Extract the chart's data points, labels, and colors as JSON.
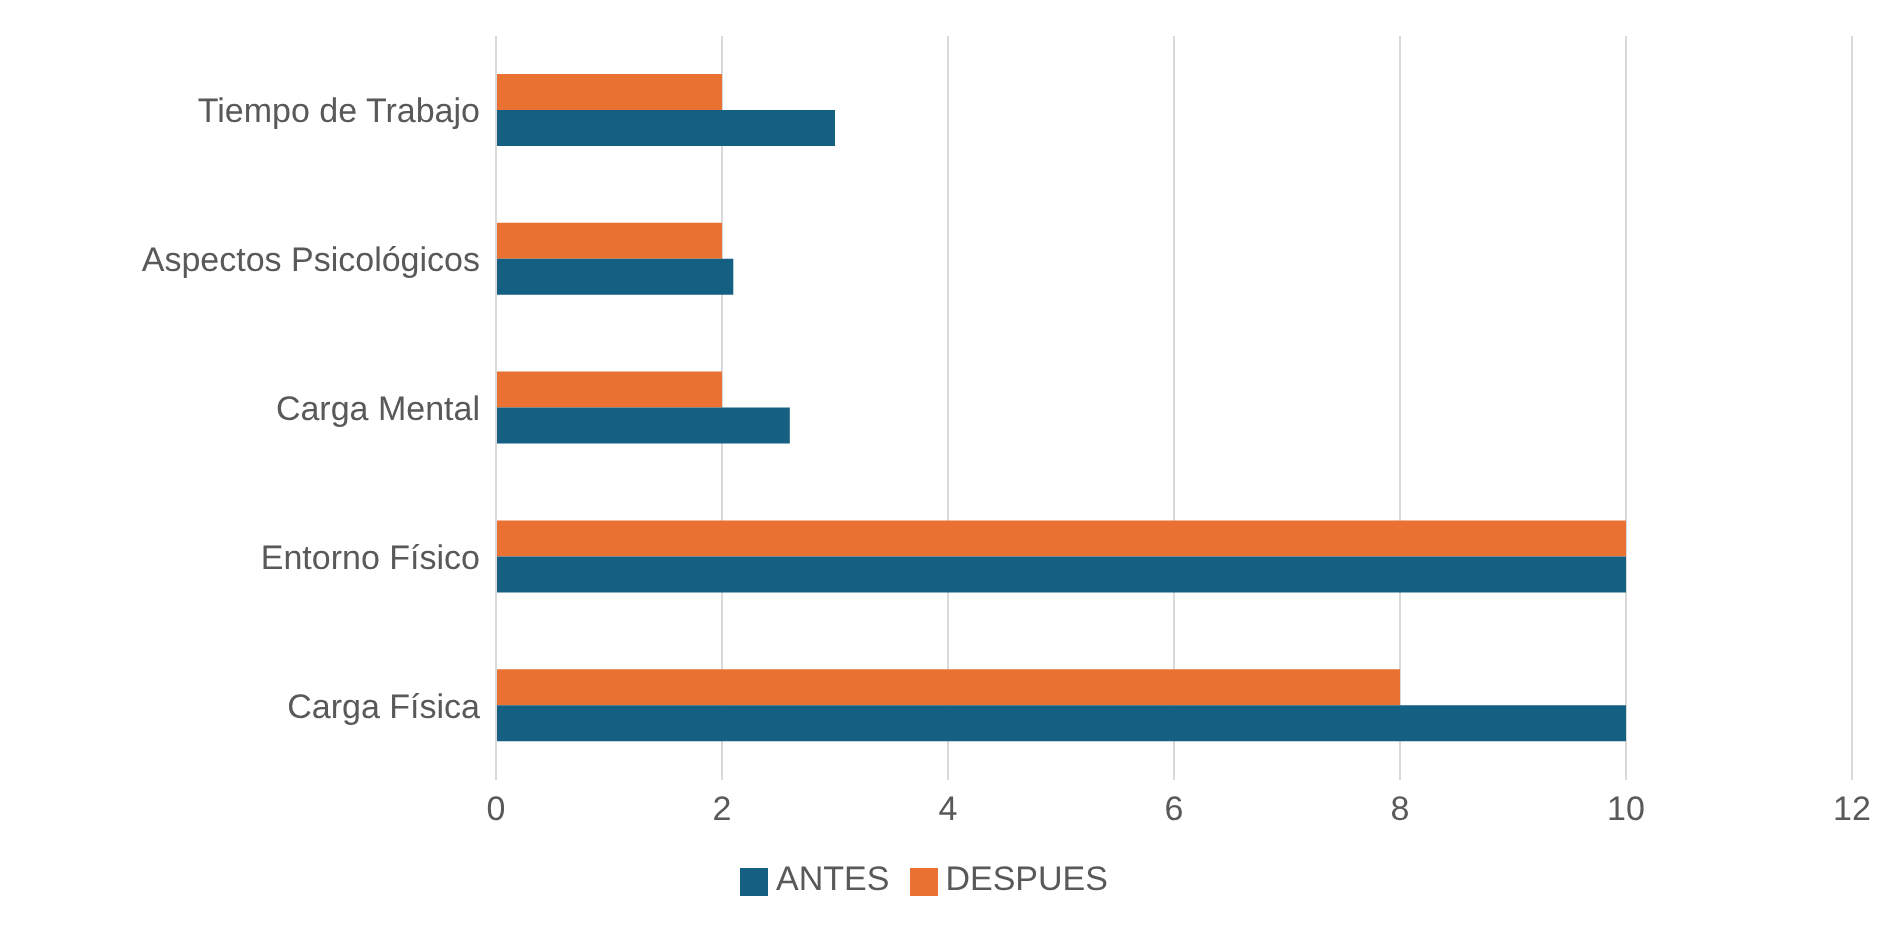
{
  "chart_data": {
    "type": "bar",
    "orientation": "horizontal",
    "categories": [
      "Tiempo de Trabajo",
      "Aspectos Psicológicos",
      "Carga Mental",
      "Entorno Físico",
      "Carga Física"
    ],
    "series": [
      {
        "name": "DESPUES",
        "color": "#e97132",
        "values": [
          2,
          2,
          2,
          10,
          8
        ]
      },
      {
        "name": "ANTES",
        "color": "#156082",
        "values": [
          3,
          2.1,
          2.6,
          10,
          10
        ]
      }
    ],
    "xlim": [
      0,
      12
    ],
    "xticks": [
      0,
      2,
      4,
      6,
      8,
      10,
      12
    ],
    "grid": "x",
    "legend": "bottom"
  }
}
